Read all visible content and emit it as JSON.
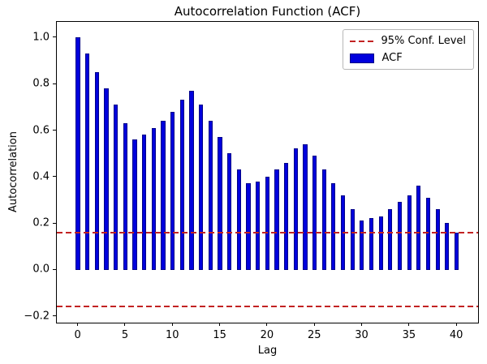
{
  "chart_data": {
    "type": "bar",
    "title": "Autocorrelation Function (ACF)",
    "xlabel": "Lag",
    "ylabel": "Autocorrelation",
    "x": [
      0,
      1,
      2,
      3,
      4,
      5,
      6,
      7,
      8,
      9,
      10,
      11,
      12,
      13,
      14,
      15,
      16,
      17,
      18,
      19,
      20,
      21,
      22,
      23,
      24,
      25,
      26,
      27,
      28,
      29,
      30,
      31,
      32,
      33,
      34,
      35,
      36,
      37,
      38,
      39,
      40
    ],
    "values": [
      1.0,
      0.93,
      0.85,
      0.78,
      0.71,
      0.63,
      0.56,
      0.58,
      0.61,
      0.64,
      0.68,
      0.73,
      0.77,
      0.71,
      0.64,
      0.57,
      0.5,
      0.43,
      0.37,
      0.38,
      0.4,
      0.43,
      0.46,
      0.52,
      0.54,
      0.49,
      0.43,
      0.37,
      0.32,
      0.26,
      0.21,
      0.22,
      0.23,
      0.26,
      0.29,
      0.32,
      0.36,
      0.31,
      0.26,
      0.2,
      0.16
    ],
    "bar_width": 0.4,
    "bar_color": "#0000dd",
    "bar_edge_color": "#000088",
    "conf_level": 0.16,
    "conf_line_color": "#c22222",
    "conf_line_style": "dashed",
    "xlim": [
      -2.2,
      42.3
    ],
    "ylim": [
      -0.229,
      1.066
    ],
    "xticks": [
      0,
      5,
      10,
      15,
      20,
      25,
      30,
      35,
      40
    ],
    "xtick_labels": [
      "0",
      "5",
      "10",
      "15",
      "20",
      "25",
      "30",
      "35",
      "40"
    ],
    "yticks": [
      -0.2,
      0.0,
      0.2,
      0.4,
      0.6,
      0.8,
      1.0
    ],
    "ytick_labels": [
      "−0.2",
      "0.0",
      "0.2",
      "0.4",
      "0.6",
      "0.8",
      "1.0"
    ],
    "grid": false,
    "legend": {
      "position": "upper right",
      "entries": [
        {
          "label": "95% Conf. Level",
          "marker": "dashed-line",
          "color": "#c22222"
        },
        {
          "label": "ACF",
          "marker": "patch",
          "color": "#0000dd"
        }
      ]
    }
  }
}
